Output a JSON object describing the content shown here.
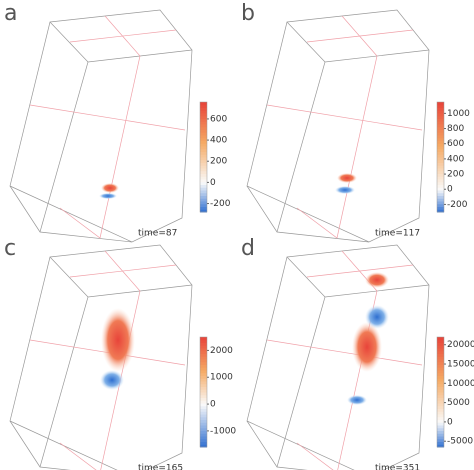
{
  "chart_data": [
    {
      "type": "volume",
      "title": "a",
      "annotation": "time=87",
      "clim": [
        -280,
        760
      ],
      "cticks": [
        600,
        400,
        200,
        0,
        -200
      ]
    },
    {
      "type": "volume",
      "title": "b",
      "annotation": "time=117",
      "clim": [
        -300,
        1150
      ],
      "cticks": [
        1000,
        800,
        600,
        400,
        200,
        0,
        -200
      ]
    },
    {
      "type": "volume",
      "title": "c",
      "annotation": "time=165",
      "clim": [
        -1600,
        2500
      ],
      "cticks": [
        2000,
        1000,
        0,
        -1000
      ]
    },
    {
      "type": "volume",
      "title": "d",
      "annotation": "time=351",
      "clim": [
        -6500,
        22000
      ],
      "cticks": [
        20000,
        15000,
        10000,
        5000,
        0,
        -5000
      ]
    }
  ]
}
